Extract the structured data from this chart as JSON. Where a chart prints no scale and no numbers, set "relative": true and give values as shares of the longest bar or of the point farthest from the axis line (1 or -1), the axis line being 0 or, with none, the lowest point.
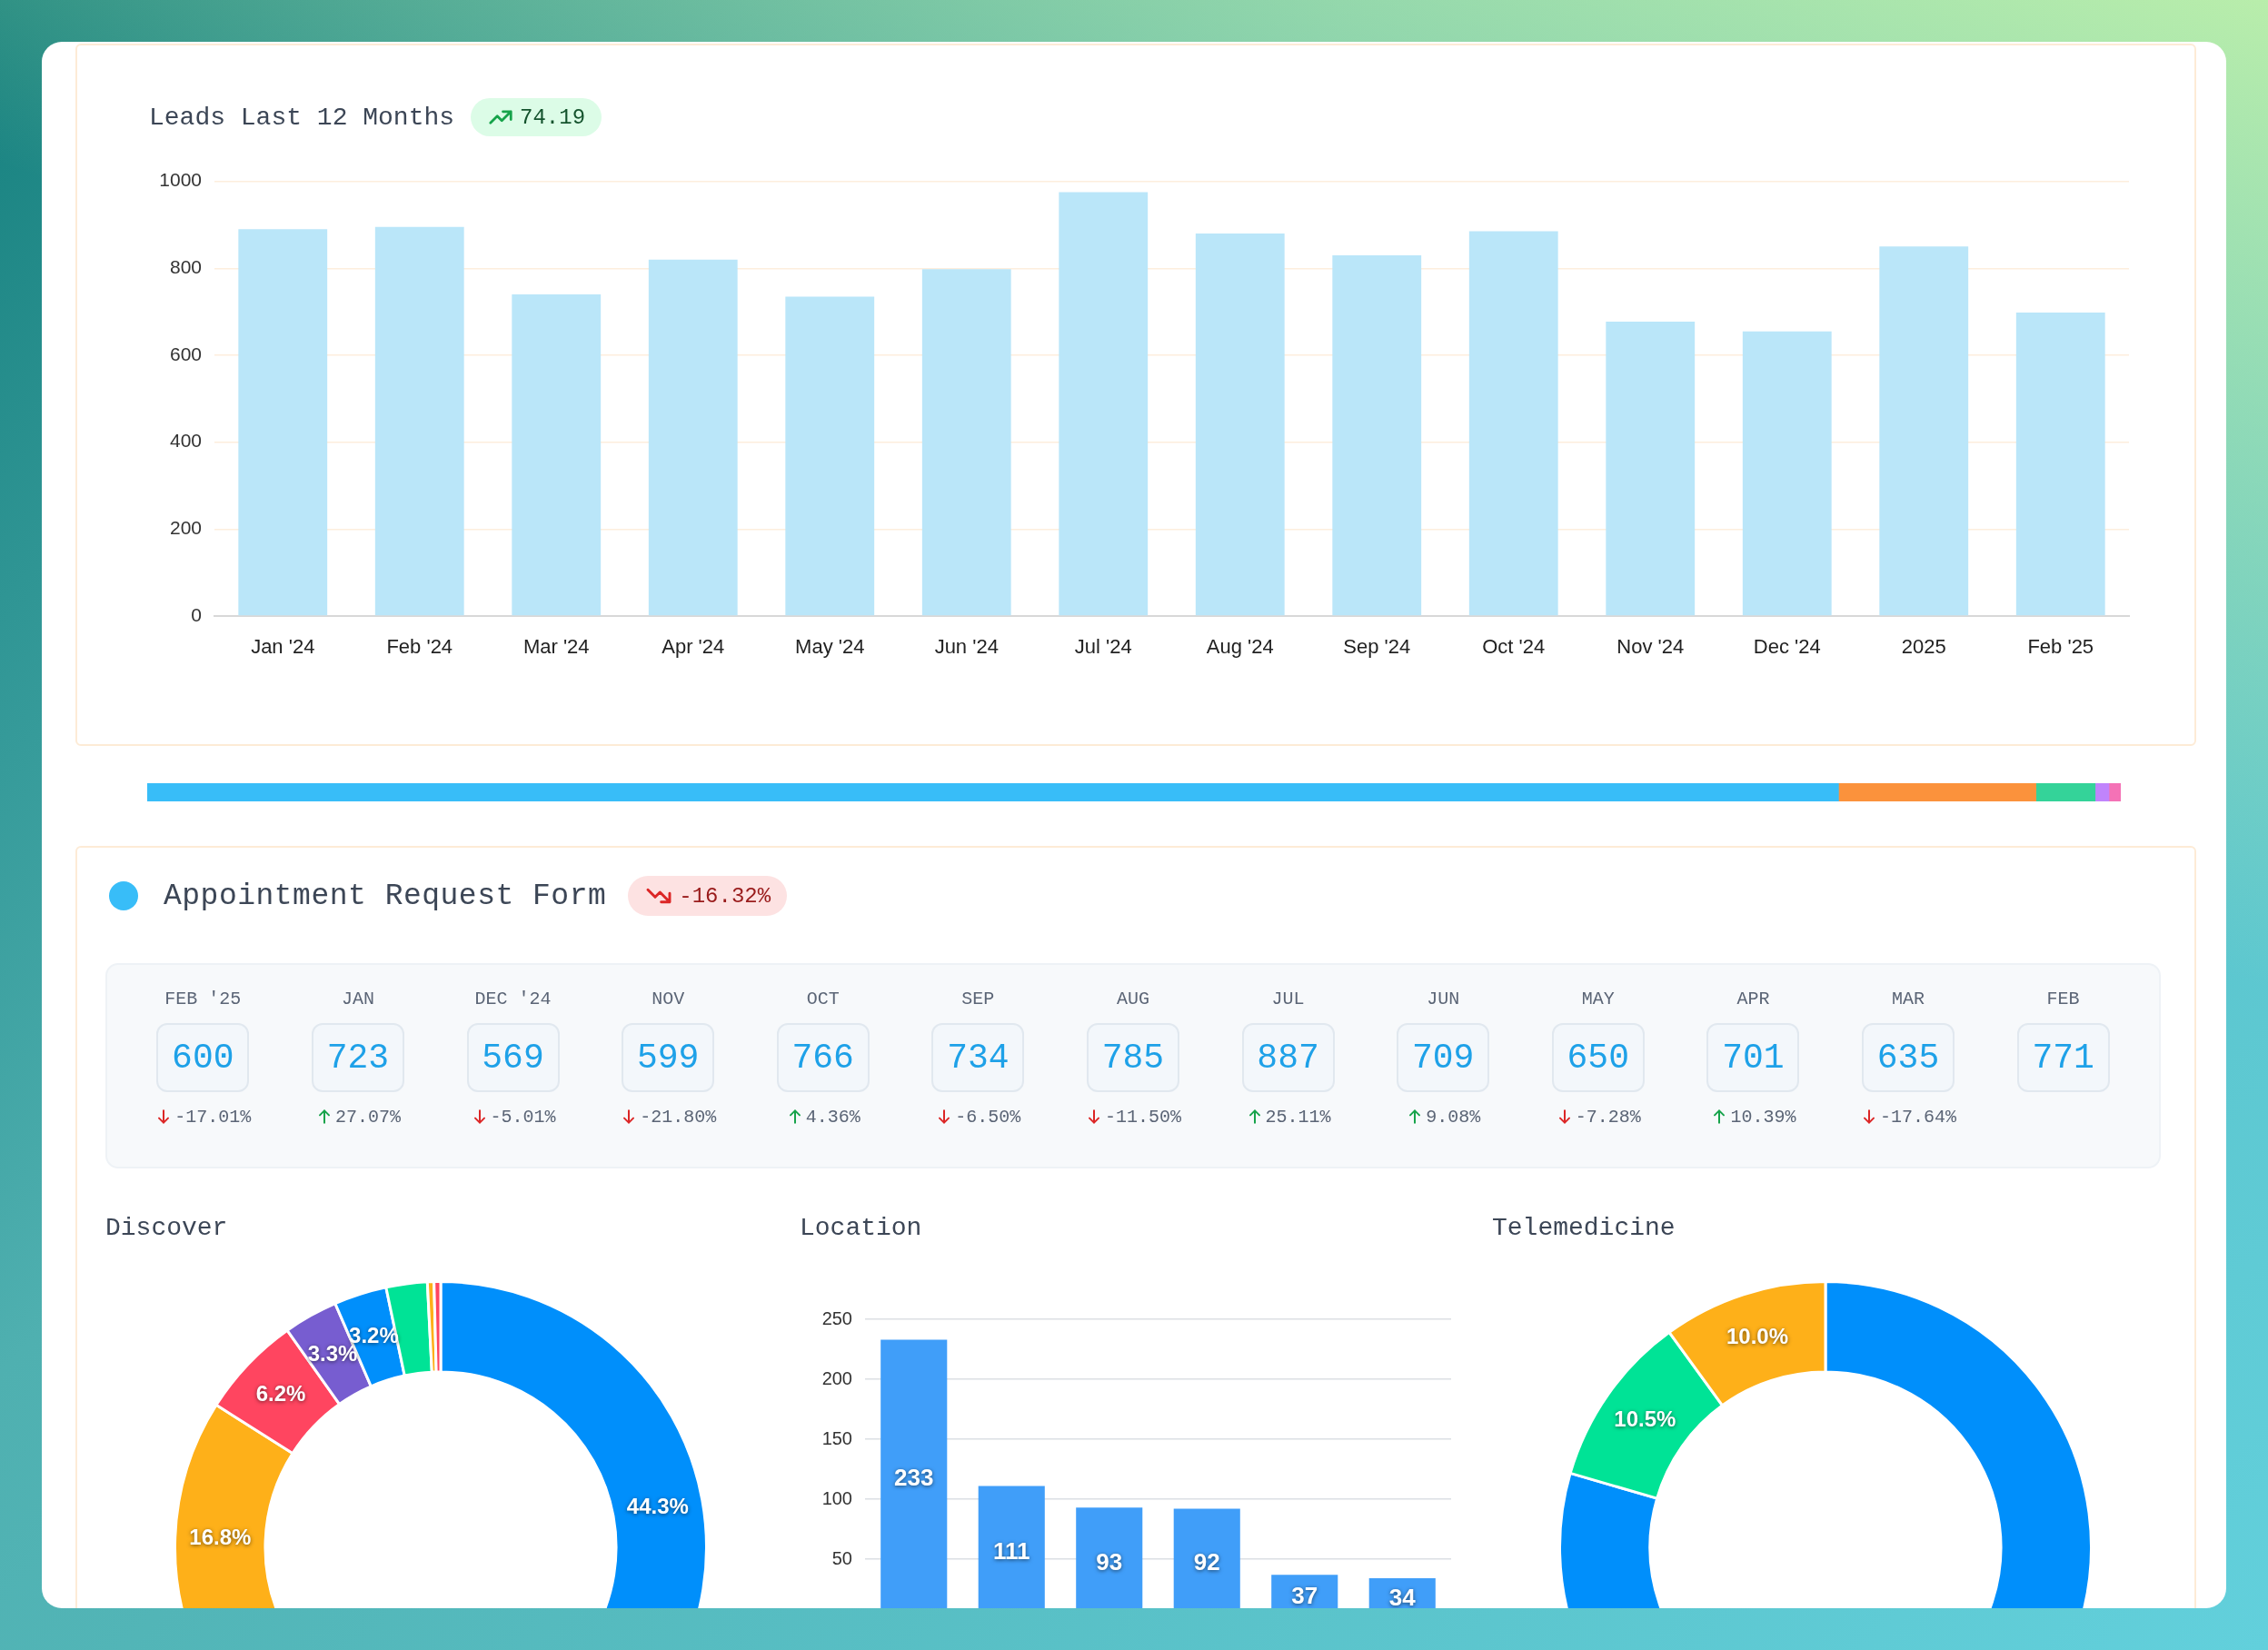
{
  "chart_data": [
    {
      "type": "bar",
      "title": "Leads Last 12 Months",
      "annotations": [
        "74.19"
      ],
      "categories": [
        "Jan '24",
        "Feb '24",
        "Mar '24",
        "Apr '24",
        "May '24",
        "Jun '24",
        "Jul '24",
        "Aug '24",
        "Sep '24",
        "Oct '24",
        "Nov '24",
        "Dec '24",
        "2025",
        "Feb '25"
      ],
      "values": [
        890,
        895,
        740,
        820,
        735,
        798,
        975,
        880,
        830,
        885,
        677,
        655,
        850,
        698
      ],
      "color": "#bae6f9",
      "ylim": [
        0,
        1000
      ],
      "yticks": [
        0,
        200,
        400,
        600,
        800,
        1000
      ],
      "grid": "y"
    },
    {
      "type": "bar",
      "orientation": "horizontal",
      "stacked": true,
      "relative": true,
      "categories": [
        null
      ],
      "series": [
        {
          "color": "#38bdf8",
          "values": [
            0.857
          ]
        },
        {
          "color": "#fb923c",
          "values": [
            0.1
          ]
        },
        {
          "color": "#34d399",
          "values": [
            0.03
          ]
        },
        {
          "color": "#c084fc",
          "values": [
            0.007
          ]
        },
        {
          "color": "#f472b6",
          "values": [
            0.006
          ]
        }
      ]
    },
    {
      "type": "other",
      "title": "Appointment Request Form",
      "annotations": [
        "-16.32%"
      ],
      "data_labels": true,
      "categories": [
        "FEB '25",
        "JAN",
        "DEC '24",
        "NOV",
        "OCT",
        "SEP",
        "AUG",
        "JUL",
        "JUN",
        "MAY",
        "APR",
        "MAR",
        "FEB"
      ],
      "series": [
        {
          "values": [
            600,
            723,
            569,
            599,
            766,
            734,
            785,
            887,
            709,
            650,
            701,
            635,
            771
          ]
        },
        {
          "values": [
            -17.01,
            27.07,
            -5.01,
            -21.8,
            4.36,
            -6.5,
            -11.5,
            25.11,
            9.08,
            -7.28,
            10.39,
            -17.64,
            null
          ],
          "value_labels": [
            "-17.01%",
            "27.07%",
            "-5.01%",
            "-21.80%",
            "4.36%",
            "-6.50%",
            "-11.50%",
            "25.11%",
            "9.08%",
            "-7.28%",
            "10.39%",
            "-17.64%",
            null
          ]
        }
      ]
    },
    {
      "type": "donut",
      "title": "Discover",
      "categories": [
        null,
        null,
        null,
        null,
        null,
        null,
        null,
        null,
        null
      ],
      "values": [
        44.3,
        null,
        16.8,
        6.2,
        3.3,
        3.2,
        2.5,
        0.4,
        0.4
      ],
      "colors": [
        "#008ffb",
        null,
        "#feb019",
        "#ff4560",
        "#775dd0",
        "#008ffb",
        "#00e396",
        "#feb019",
        "#ff4560"
      ],
      "value_labels": [
        "44.3%",
        null,
        "16.8%",
        "6.2%",
        "3.3%",
        "3.2%",
        null,
        null,
        null
      ]
    },
    {
      "type": "bar",
      "title": "Location",
      "categories": [
        null,
        null,
        null,
        null,
        null,
        null
      ],
      "values": [
        233,
        111,
        93,
        92,
        37,
        34
      ],
      "color": "#409ef9",
      "ylim": [
        0,
        250
      ],
      "yticks": [
        50,
        100,
        150,
        200,
        250
      ],
      "grid": "y",
      "data_labels": true
    },
    {
      "type": "donut",
      "title": "Telemedicine",
      "categories": [
        null,
        null,
        null,
        null
      ],
      "values": [
        60.0,
        19.5,
        10.5,
        10.0
      ],
      "colors": [
        "#008ffb",
        "#008ffb",
        "#00e396",
        "#feb019"
      ],
      "value_labels": [
        null,
        null,
        "10.5%",
        "10.0%"
      ]
    }
  ]
}
